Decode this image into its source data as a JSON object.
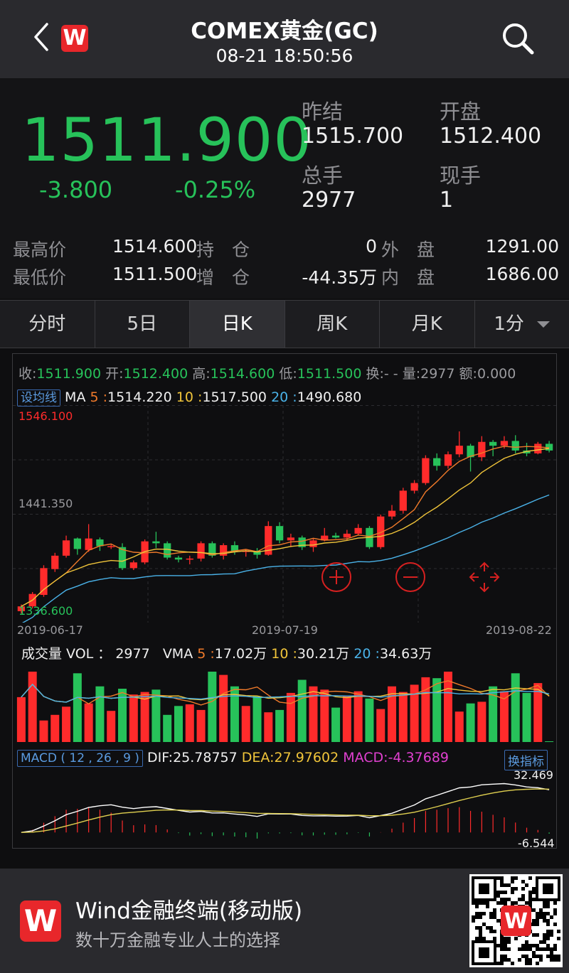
{
  "header": {
    "title": "COMEX黄金(GC)",
    "timestamp": "08-21 18:50:56",
    "logo": "W"
  },
  "quote": {
    "price": "1511.900",
    "change": "-3.800",
    "change_pct": "-0.25%",
    "prev_close_label": "昨结",
    "prev_close": "1515.700",
    "open_label": "开盘",
    "open": "1512.400",
    "total_vol_label": "总手",
    "total_vol": "2977",
    "cur_vol_label": "现手",
    "cur_vol": "1",
    "high_label": "最高价",
    "high": "1514.600",
    "low_label": "最低价",
    "low": "1511.500",
    "hold_label": "持　仓",
    "hold": "0",
    "inc_label": "增　仓",
    "inc": "-44.35万",
    "outer_label": "外　盘",
    "outer": "1291.00",
    "inner_label": "内　盘",
    "inner": "1686.00"
  },
  "tabs": [
    "分时",
    "5日",
    "日K",
    "周K",
    "月K",
    "1分"
  ],
  "active_tab": "日K",
  "kline": {
    "close_label": "收:",
    "close": "1511.900",
    "open_label": "开:",
    "open": "1512.400",
    "high_label": "高:",
    "high": "1514.600",
    "low_label": "低:",
    "low": "1511.500",
    "turn_label": "换:",
    "turn": "- -",
    "vol_label": "量:",
    "vol": "2977",
    "amt_label": "额:",
    "amt": "0.000",
    "ma_tag": "设均线",
    "ma_label": "MA",
    "ma5_label": "5 :",
    "ma5": "1514.220",
    "ma10_label": "10 :",
    "ma10": "1517.500",
    "ma20_label": "20 :",
    "ma20": "1490.680",
    "y_top": "1546.100",
    "y_mid": "1441.350",
    "y_bot": "1336.600",
    "dates": [
      "2019-06-17",
      "2019-07-19",
      "2019-08-22"
    ]
  },
  "volume": {
    "title": "成交量 VOL ： 2977",
    "vma_label": "VMA",
    "v5_label": "5 :",
    "v5": "17.02万",
    "v10_label": "10 :",
    "v10": "30.21万",
    "v20_label": "20 :",
    "v20": "34.63万"
  },
  "macd": {
    "tag": "MACD ( 12 , 26 , 9 )",
    "dif_label": "DIF:",
    "dif": "25.78757",
    "dea_label": "DEA:",
    "dea": "27.97602",
    "macd_label": "MACD:",
    "macd": "-4.37689",
    "switch": "换指标",
    "max": "32.469",
    "min": "-6.544"
  },
  "footer": {
    "title": "Wind金融终端(移动版)",
    "subtitle": "数十万金融专业人士的选择",
    "logo": "W"
  },
  "colors": {
    "up": "#ff2b2b",
    "down": "#27c25a",
    "ma5": "#f07a2a",
    "ma10": "#f0c43a",
    "ma20": "#4ab2e8",
    "dif": "#ffffff",
    "dea": "#e0d050"
  },
  "chart_data": {
    "type": "candlestick",
    "candles": [
      [
        1339,
        1344,
        1336.6,
        1346
      ],
      [
        1344,
        1357,
        1342,
        1359
      ],
      [
        1356,
        1384,
        1354,
        1387
      ],
      [
        1383,
        1397,
        1380,
        1400
      ],
      [
        1397,
        1413,
        1395,
        1418
      ],
      [
        1415,
        1404,
        1398,
        1416
      ],
      [
        1403,
        1415,
        1401,
        1430
      ],
      [
        1414,
        1407,
        1402,
        1416
      ],
      [
        1406,
        1407,
        1404,
        1409
      ],
      [
        1406,
        1384,
        1382,
        1410
      ],
      [
        1384,
        1390,
        1382,
        1392
      ],
      [
        1390,
        1412,
        1388,
        1414
      ],
      [
        1412,
        1410,
        1405,
        1422
      ],
      [
        1410,
        1395,
        1393,
        1412
      ],
      [
        1395,
        1393,
        1390,
        1397
      ],
      [
        1393,
        1394,
        1388,
        1397
      ],
      [
        1394,
        1410,
        1391,
        1412
      ],
      [
        1410,
        1397,
        1395,
        1412
      ],
      [
        1397,
        1408,
        1393,
        1410
      ],
      [
        1408,
        1401,
        1398,
        1412
      ],
      [
        1401,
        1402,
        1396,
        1404
      ],
      [
        1402,
        1398,
        1394,
        1405
      ],
      [
        1398,
        1428,
        1397,
        1433
      ],
      [
        1428,
        1413,
        1410,
        1432
      ],
      [
        1413,
        1416,
        1406,
        1420
      ],
      [
        1416,
        1406,
        1403,
        1418
      ],
      [
        1406,
        1413,
        1401,
        1415
      ],
      [
        1413,
        1418,
        1412,
        1426
      ],
      [
        1418,
        1416,
        1415,
        1421
      ],
      [
        1416,
        1420,
        1413,
        1424
      ],
      [
        1420,
        1426,
        1418,
        1430
      ],
      [
        1426,
        1406,
        1404,
        1428
      ],
      [
        1406,
        1438,
        1404,
        1440
      ],
      [
        1438,
        1444,
        1435,
        1450
      ],
      [
        1444,
        1465,
        1441,
        1468
      ],
      [
        1465,
        1473,
        1462,
        1476
      ],
      [
        1473,
        1499,
        1471,
        1502
      ],
      [
        1499,
        1491,
        1486,
        1504
      ],
      [
        1491,
        1503,
        1488,
        1506
      ],
      [
        1503,
        1512,
        1500,
        1527
      ],
      [
        1512,
        1500,
        1485,
        1514
      ],
      [
        1500,
        1516,
        1496,
        1522
      ],
      [
        1516,
        1512,
        1501,
        1518
      ],
      [
        1512,
        1517,
        1509,
        1522
      ],
      [
        1517,
        1507,
        1504,
        1523
      ],
      [
        1507,
        1504,
        1501,
        1515
      ],
      [
        1504,
        1514,
        1503,
        1516
      ],
      [
        1514,
        1507,
        1505,
        1517
      ]
    ],
    "volume_ma": [
      "17.02万",
      "30.21万",
      "34.63万"
    ],
    "macd_range": [
      -6.544,
      32.469
    ]
  }
}
